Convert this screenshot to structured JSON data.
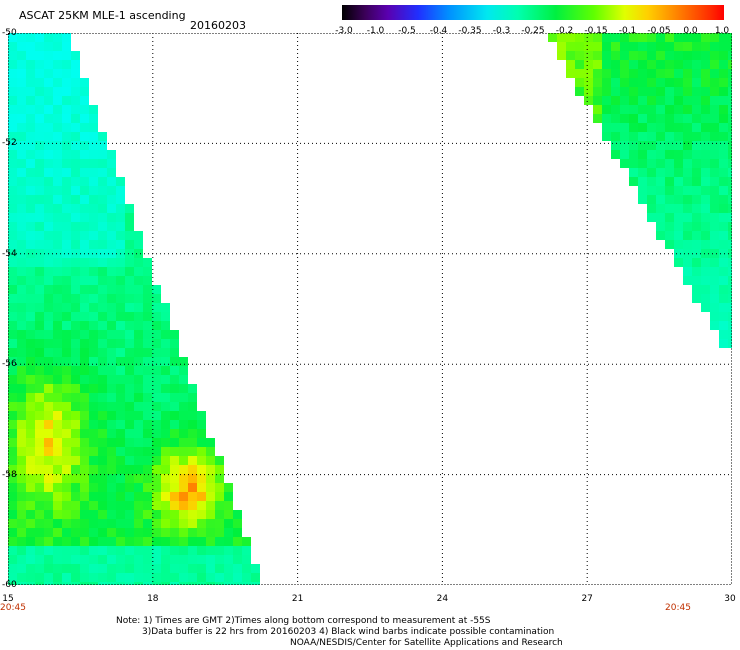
{
  "header": {
    "title": "ASCAT 25KM MLE-1 ascending",
    "date": "20160203"
  },
  "colorbar": {
    "labels": [
      "-3.0",
      "-1.0",
      "-0.5",
      "-0.4",
      "-0.35",
      "-0.3",
      "-0.25",
      "-0.2",
      "-0.15",
      "-0.1",
      "-0.05",
      "0.0",
      "1.0"
    ],
    "stops": [
      "#000000",
      "#5a00b0",
      "#2030ff",
      "#0090ff",
      "#00e8f0",
      "#00ffb0",
      "#00f040",
      "#60ff00",
      "#e0ff00",
      "#ffd000",
      "#ff8000",
      "#ff0000"
    ]
  },
  "map": {
    "lat_labels": [
      "-50",
      "-52",
      "-54",
      "-56",
      "-58",
      "-60"
    ],
    "lon_labels": [
      "15",
      "18",
      "21",
      "24",
      "27",
      "30"
    ],
    "lat_range": [
      -60,
      -50
    ],
    "lon_range": [
      15,
      30
    ],
    "grid": "dotted",
    "start_time": "20:45",
    "end_time": "20:45"
  },
  "notes": {
    "line1": "Note: 1) Times are GMT 2)Times along bottom correspond to measurement at -55S",
    "line2": "3)Data buffer is 22 hrs from 20160203 4) Black wind barbs indicate possible contamination",
    "line3": "NOAA/NESDIS/Center for Satellite Applications and Research"
  }
}
